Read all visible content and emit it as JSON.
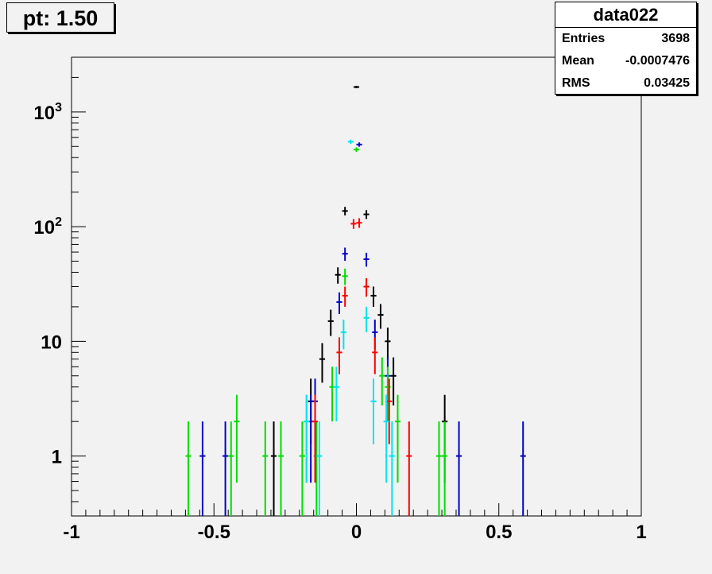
{
  "title_box": {
    "label": "pt: 1.50"
  },
  "stats_box": {
    "name": "data022",
    "rows": [
      {
        "label": "Entries",
        "value": "3698"
      },
      {
        "label": "Mean",
        "value": "-0.0007476"
      },
      {
        "label": "RMS",
        "value": "0.03425"
      }
    ]
  },
  "chart_data": {
    "type": "scatter",
    "title": "",
    "xlabel": "",
    "ylabel": "",
    "xlim": [
      -1,
      1
    ],
    "ylim": [
      0.3,
      3000
    ],
    "log_y": true,
    "grid": false,
    "x_ticks": [
      {
        "value": -1,
        "label": "-1"
      },
      {
        "value": -0.5,
        "label": "-0.5"
      },
      {
        "value": 0,
        "label": "0"
      },
      {
        "value": 0.5,
        "label": "0.5"
      },
      {
        "value": 1,
        "label": "1"
      }
    ],
    "y_ticks": [
      {
        "value": 1,
        "label": "1"
      },
      {
        "value": 10,
        "label": "10"
      },
      {
        "value": 100,
        "label": "10",
        "sup": "2"
      },
      {
        "value": 1000,
        "label": "10",
        "sup": "3"
      }
    ],
    "bin_halfwidth": 0.01,
    "series": [
      {
        "color": "#000000",
        "points": [
          [
            -0.29,
            1
          ],
          [
            -0.16,
            3
          ],
          [
            -0.12,
            7
          ],
          [
            -0.09,
            15
          ],
          [
            -0.065,
            38
          ],
          [
            -0.04,
            137
          ],
          [
            0,
            1650
          ],
          [
            0.035,
            128
          ],
          [
            0.06,
            25
          ],
          [
            0.085,
            17
          ],
          [
            0.11,
            10
          ],
          [
            0.13,
            5
          ],
          [
            0.31,
            2
          ]
        ]
      },
      {
        "color": "#0000cc",
        "points": [
          [
            -0.54,
            1
          ],
          [
            -0.46,
            1
          ],
          [
            -0.16,
            2
          ],
          [
            -0.145,
            3
          ],
          [
            -0.06,
            22
          ],
          [
            -0.04,
            58
          ],
          [
            0.01,
            520
          ],
          [
            0.035,
            52
          ],
          [
            0.065,
            12
          ],
          [
            0.11,
            5
          ],
          [
            0.36,
            1
          ],
          [
            0.585,
            1
          ]
        ]
      },
      {
        "color": "#00dd00",
        "points": [
          [
            -0.59,
            1
          ],
          [
            -0.44,
            1
          ],
          [
            -0.42,
            2
          ],
          [
            -0.32,
            1
          ],
          [
            -0.265,
            1
          ],
          [
            -0.19,
            1
          ],
          [
            -0.175,
            2
          ],
          [
            -0.14,
            1
          ],
          [
            -0.085,
            4
          ],
          [
            -0.04,
            37
          ],
          [
            0,
            470
          ],
          [
            0.035,
            30
          ],
          [
            0.09,
            5
          ],
          [
            0.11,
            4
          ],
          [
            0.145,
            2
          ],
          [
            0.29,
            1
          ],
          [
            0.31,
            1
          ]
        ]
      },
      {
        "color": "#ff0000",
        "points": [
          [
            -0.145,
            2
          ],
          [
            -0.06,
            8
          ],
          [
            -0.04,
            25
          ],
          [
            -0.01,
            106
          ],
          [
            0.01,
            108
          ],
          [
            0.035,
            30
          ],
          [
            0.065,
            8
          ],
          [
            0.115,
            3
          ],
          [
            0.185,
            1
          ]
        ]
      },
      {
        "color": "#00e5ee",
        "points": [
          [
            -0.175,
            2
          ],
          [
            -0.13,
            1
          ],
          [
            -0.07,
            4
          ],
          [
            -0.045,
            12
          ],
          [
            -0.02,
            550
          ],
          [
            0.035,
            16
          ],
          [
            0.06,
            3
          ],
          [
            0.105,
            2
          ],
          [
            0.125,
            1
          ]
        ]
      }
    ]
  }
}
